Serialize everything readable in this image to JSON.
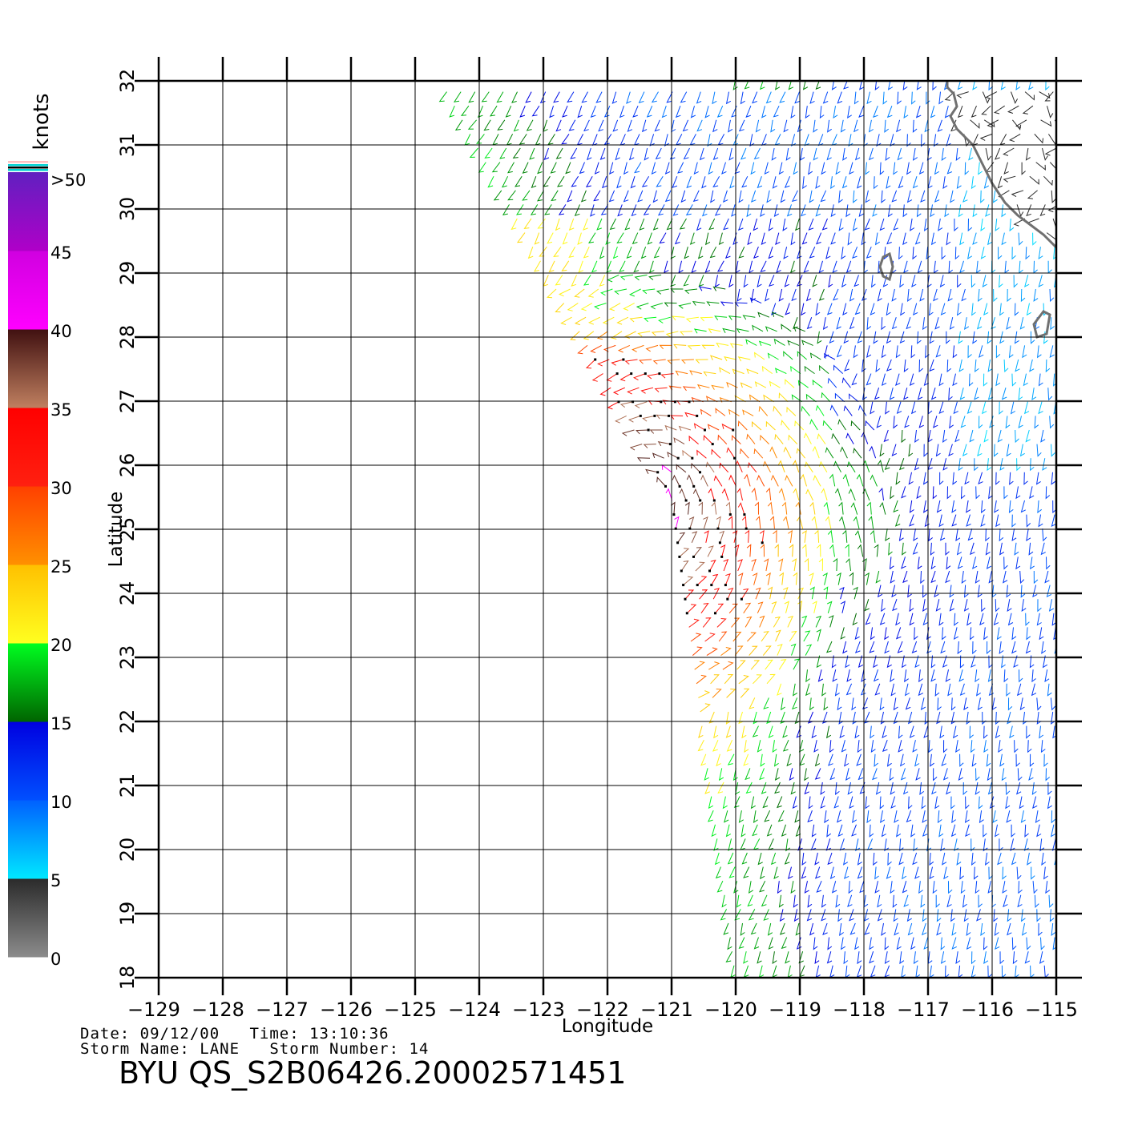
{
  "map": {
    "lon_range": [
      -129,
      -115
    ],
    "lat_range": [
      18,
      32
    ],
    "lon_ticks": [
      "-129",
      "-128",
      "-127",
      "-126",
      "-125",
      "-124",
      "-123",
      "-122",
      "-121",
      "-120",
      "-119",
      "-118",
      "-117",
      "-116",
      "-115"
    ],
    "lat_ticks": [
      "18",
      "19",
      "20",
      "21",
      "22",
      "23",
      "24",
      "25",
      "26",
      "27",
      "28",
      "29",
      "30",
      "31",
      "32"
    ],
    "xlabel": "Longitude",
    "ylabel": "Latitude",
    "grid": true,
    "land_color": "#707070",
    "swath_corners_lonlat": [
      [
        -124.6,
        32
      ],
      [
        -119.9,
        32
      ],
      [
        -119.9,
        32
      ],
      [
        -115,
        32
      ],
      [
        -115,
        18
      ],
      [
        -119.9,
        18
      ]
    ],
    "swath_west_edge_lonlat": [
      [
        -124.6,
        32
      ],
      [
        -121.0,
        25.5
      ],
      [
        -120.0,
        18
      ]
    ],
    "feature": "storm circulation near -121.5, 25.5"
  },
  "colorbar": {
    "unit": "knots",
    "labels": [
      "0",
      "5",
      "10",
      "15",
      "20",
      "25",
      "30",
      "35",
      "40",
      "45",
      ">50"
    ],
    "stops": [
      {
        "from": 0,
        "to": 5,
        "colors": [
          "#8c8c8c",
          "#2a2a2a"
        ]
      },
      {
        "from": 5,
        "to": 10,
        "colors": [
          "#00e8ff",
          "#0060ff"
        ]
      },
      {
        "from": 10,
        "to": 15,
        "colors": [
          "#0050ff",
          "#0000e0"
        ]
      },
      {
        "from": 15,
        "to": 20,
        "colors": [
          "#006400",
          "#00ff20"
        ]
      },
      {
        "from": 20,
        "to": 25,
        "colors": [
          "#ffff20",
          "#ffc000"
        ]
      },
      {
        "from": 25,
        "to": 30,
        "colors": [
          "#ff9000",
          "#ff4000"
        ]
      },
      {
        "from": 30,
        "to": 35,
        "colors": [
          "#ff2010",
          "#ff0000"
        ]
      },
      {
        "from": 35,
        "to": 40,
        "colors": [
          "#c08060",
          "#401010"
        ]
      },
      {
        "from": 40,
        "to": 45,
        "colors": [
          "#ff00ff",
          "#d000e0"
        ]
      },
      {
        "from": 45,
        "to": 50,
        "colors": [
          "#b000c8",
          "#6020c0"
        ]
      }
    ]
  },
  "info": {
    "line1": "Date: 09/12/00   Time: 13:10:36",
    "line2": "Storm Name: LANE   Storm Number: 14",
    "title": "BYU QS_S2B06426.20002571451"
  }
}
